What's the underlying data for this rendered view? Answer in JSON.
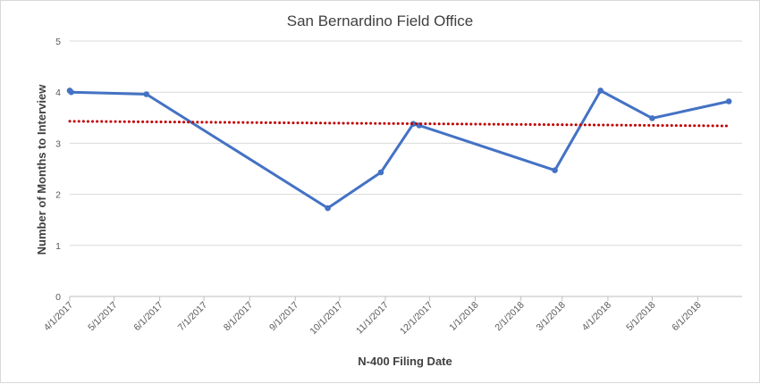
{
  "chart_data": {
    "type": "line",
    "title": "San Bernardino Field Office",
    "xlabel": "N-400 Filing Date",
    "ylabel": "Number of Months to Interview",
    "ylim": [
      0,
      5
    ],
    "yticks": [
      "0",
      "1",
      "2",
      "3",
      "4",
      "5"
    ],
    "x_tick_labels": [
      "4/1/2017",
      "5/1/2017",
      "6/1/2017",
      "7/1/2017",
      "8/1/2017",
      "9/1/2017",
      "10/1/2017",
      "11/1/2017",
      "12/1/2017",
      "1/1/2018",
      "2/1/2018",
      "3/1/2018",
      "4/1/2018",
      "5/1/2018",
      "6/1/2018"
    ],
    "x_tick_dates": [
      "2017-04-01",
      "2017-05-01",
      "2017-06-01",
      "2017-07-01",
      "2017-08-01",
      "2017-09-01",
      "2017-10-01",
      "2017-11-01",
      "2017-12-01",
      "2018-01-01",
      "2018-02-01",
      "2018-03-01",
      "2018-04-01",
      "2018-05-01",
      "2018-06-01"
    ],
    "xlim": [
      "2017-04-01",
      "2018-07-01"
    ],
    "grid": "horizontal",
    "series": [
      {
        "kind": "line",
        "color": "#4472C4",
        "points": [
          {
            "x": "2017-04-01",
            "y": 4.03
          },
          {
            "x": "2017-04-02",
            "y": 4.0
          },
          {
            "x": "2017-05-23",
            "y": 3.96
          },
          {
            "x": "2017-09-23",
            "y": 1.73
          },
          {
            "x": "2017-10-29",
            "y": 2.43
          },
          {
            "x": "2017-11-20",
            "y": 3.38
          },
          {
            "x": "2017-11-24",
            "y": 3.35
          },
          {
            "x": "2018-02-24",
            "y": 2.47
          },
          {
            "x": "2018-03-27",
            "y": 4.03
          },
          {
            "x": "2018-05-01",
            "y": 3.49
          },
          {
            "x": "2018-06-22",
            "y": 3.82
          }
        ]
      },
      {
        "kind": "trendline",
        "color": "#C00000",
        "style": "dotted",
        "points": [
          {
            "x": "2017-04-01",
            "y": 3.43
          },
          {
            "x": "2018-06-22",
            "y": 3.34
          }
        ]
      }
    ]
  }
}
